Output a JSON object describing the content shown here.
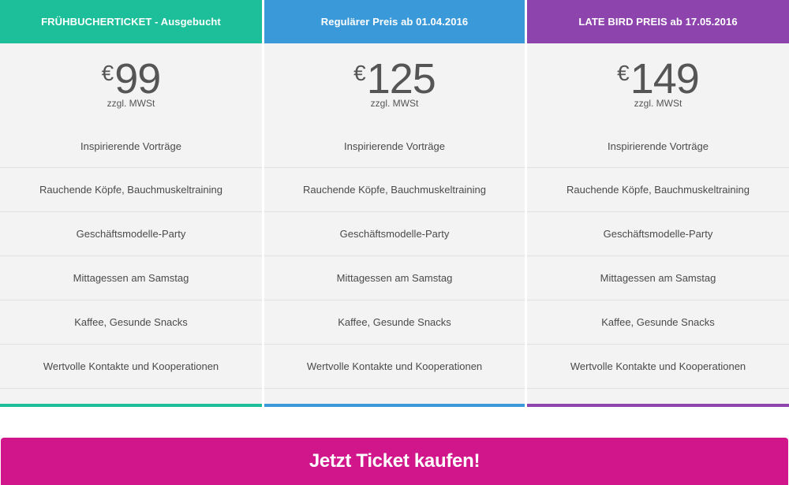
{
  "colors": {
    "tier_early": "#1dbf9b",
    "tier_regular": "#3a99d9",
    "tier_late": "#8e44ad",
    "cta": "#d0168a",
    "card_background": "#f3f3f3",
    "text": "#4a4a4a"
  },
  "tiers": [
    {
      "header": "FRÜHBUCHERTICKET - Ausgebucht",
      "currency": "€",
      "amount": "99",
      "vat_note": "zzgl. MWSt",
      "features": [
        "Inspirierende Vorträge",
        "Rauchende Köpfe, Bauchmuskeltraining",
        "Geschäftsmodelle-Party",
        "Mittagessen am Samstag",
        "Kaffee, Gesunde Snacks",
        "Wertvolle Kontakte und Kooperationen"
      ]
    },
    {
      "header": "Regulärer Preis ab 01.04.2016",
      "currency": "€",
      "amount": "125",
      "vat_note": "zzgl. MWSt",
      "features": [
        "Inspirierende Vorträge",
        "Rauchende Köpfe, Bauchmuskeltraining",
        "Geschäftsmodelle-Party",
        "Mittagessen am Samstag",
        "Kaffee, Gesunde Snacks",
        "Wertvolle Kontakte und Kooperationen"
      ]
    },
    {
      "header": "LATE BIRD PREIS ab 17.05.2016",
      "currency": "€",
      "amount": "149",
      "vat_note": "zzgl. MWSt",
      "features": [
        "Inspirierende Vorträge",
        "Rauchende Köpfe, Bauchmuskeltraining",
        "Geschäftsmodelle-Party",
        "Mittagessen am Samstag",
        "Kaffee, Gesunde Snacks",
        "Wertvolle Kontakte und Kooperationen"
      ]
    }
  ],
  "cta": {
    "label": "Jetzt Ticket kaufen!"
  }
}
